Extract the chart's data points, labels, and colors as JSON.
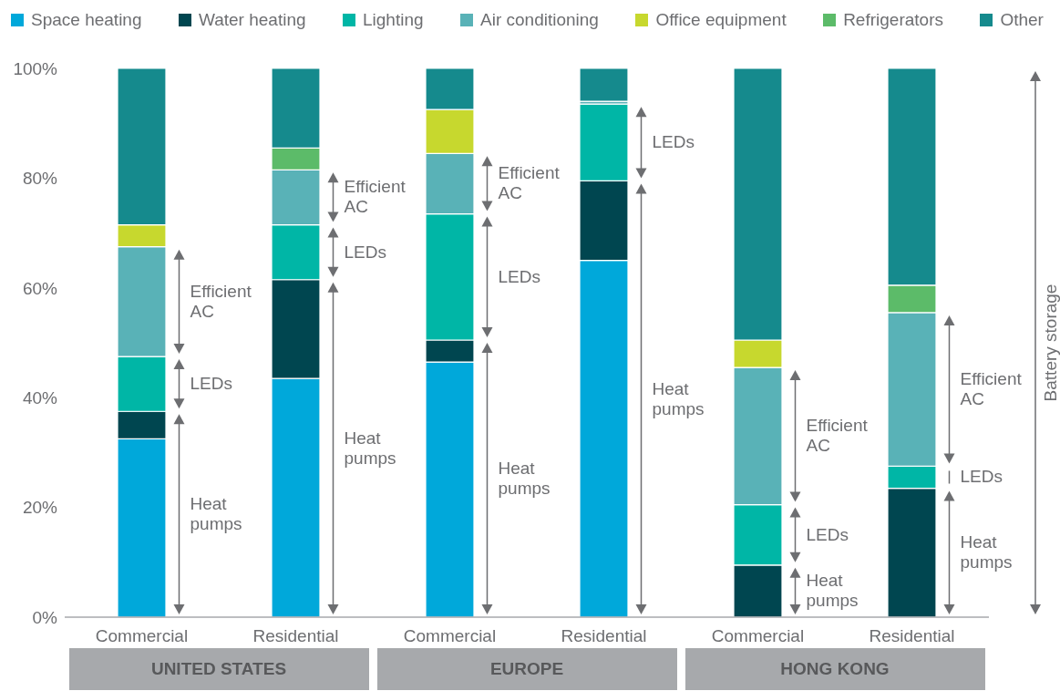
{
  "chart_data": {
    "type": "bar",
    "stacked": true,
    "categories": [
      "Commercial",
      "Residential",
      "Commercial",
      "Residential",
      "Commercial",
      "Residential"
    ],
    "series": [
      {
        "name": "Space heating",
        "color": "#00a8da",
        "values": [
          32.5,
          43.5,
          46.5,
          65,
          0,
          0
        ]
      },
      {
        "name": "Water heating",
        "color": "#004650",
        "values": [
          5,
          18,
          4,
          14.5,
          9.5,
          23.5
        ]
      },
      {
        "name": "Lighting",
        "color": "#00b6a6",
        "values": [
          10,
          10,
          23,
          14,
          11,
          4
        ]
      },
      {
        "name": "Air conditioning",
        "color": "#59b2b7",
        "values": [
          20,
          10,
          11,
          0.5,
          25,
          28
        ]
      },
      {
        "name": "Office equipment",
        "color": "#c7d82e",
        "values": [
          4,
          0,
          8,
          0,
          5,
          0
        ]
      },
      {
        "name": "Refrigerators",
        "color": "#5cbb69",
        "values": [
          0,
          4,
          0,
          0,
          0,
          5
        ]
      },
      {
        "name": "Other",
        "color": "#158a8d",
        "values": [
          28.5,
          14.5,
          7.5,
          6,
          49.5,
          39.5
        ]
      }
    ],
    "ylim": [
      0,
      100
    ],
    "yticks": [
      {
        "value": 0,
        "label": "0%"
      },
      {
        "value": 20,
        "label": "20%"
      },
      {
        "value": 40,
        "label": "40%"
      },
      {
        "value": 60,
        "label": "60%"
      },
      {
        "value": 80,
        "label": "80%"
      },
      {
        "value": 100,
        "label": "100%"
      }
    ],
    "legend": "top",
    "annotations": [
      "Heat pumps",
      "LEDs",
      "Efficient AC",
      "Heat pumps",
      "LEDs",
      "Efficient AC",
      "Heat pumps",
      "LEDs",
      "Efficient AC",
      "Heat pumps",
      "LEDs",
      "Heat pumps",
      "LEDs",
      "Efficient AC",
      "Heat pumps",
      "LEDs",
      "Efficient AC",
      "Battery storage",
      "UNITED STATES",
      "EUROPE",
      "HONG KONG"
    ]
  }
}
